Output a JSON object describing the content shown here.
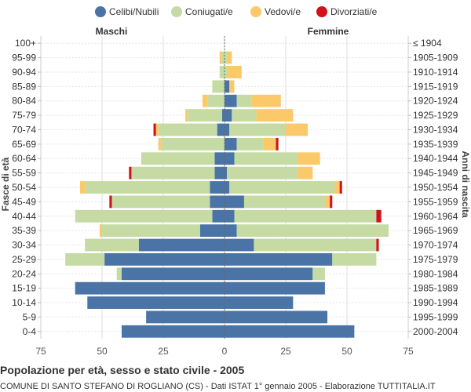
{
  "chart_data": {
    "type": "bar",
    "orientation": "horizontal-population-pyramid",
    "title": "Popolazione per età, sesso e stato civile - 2005",
    "subtitle": "COMUNE DI SANTO STEFANO DI ROGLIANO (CS) - Dati ISTAT 1° gennaio 2005 - Elaborazione TUTTITALIA.IT",
    "left_label": "Maschi",
    "right_label": "Femmine",
    "ylabel_left": "Fasce di età",
    "ylabel_right": "Anni di nascita",
    "xlim": [
      -75,
      75
    ],
    "xticks": [
      -75,
      -50,
      -25,
      0,
      25,
      50,
      75
    ],
    "xtick_labels": [
      "75",
      "50",
      "25",
      "0",
      "25",
      "50",
      "75"
    ],
    "age_groups": [
      "100+",
      "95-99",
      "90-94",
      "85-89",
      "80-84",
      "75-79",
      "70-74",
      "65-69",
      "60-64",
      "55-59",
      "50-54",
      "45-49",
      "40-44",
      "35-39",
      "30-34",
      "25-29",
      "20-24",
      "15-19",
      "10-14",
      "5-9",
      "0-4"
    ],
    "birth_years": [
      "≤ 1904",
      "1905-1909",
      "1910-1914",
      "1915-1919",
      "1920-1924",
      "1925-1929",
      "1930-1934",
      "1935-1939",
      "1940-1944",
      "1945-1949",
      "1950-1954",
      "1955-1959",
      "1960-1964",
      "1965-1969",
      "1970-1974",
      "1975-1979",
      "1980-1984",
      "1985-1989",
      "1990-1994",
      "1995-1999",
      "2000-2004"
    ],
    "legend": [
      {
        "name": "Celibi/Nubili",
        "color": "#4a74a6"
      },
      {
        "name": "Coniugati/e",
        "color": "#c5dba3"
      },
      {
        "name": "Vedovi/e",
        "color": "#fcc96a"
      },
      {
        "name": "Divorziati/e",
        "color": "#d0121b"
      }
    ],
    "males": {
      "celibi": [
        0,
        0,
        0,
        0,
        0,
        1,
        3,
        0,
        4,
        4,
        6,
        6,
        5,
        10,
        35,
        49,
        42,
        61,
        56,
        32,
        42
      ],
      "coniugati": [
        0,
        1,
        2,
        5,
        7,
        14,
        24,
        26,
        30,
        34,
        51,
        40,
        56,
        40,
        22,
        16,
        2,
        0,
        0,
        0,
        0
      ],
      "vedovi": [
        0,
        1,
        0,
        0,
        2,
        1,
        1,
        1,
        0,
        0,
        2,
        0,
        0,
        1,
        0,
        0,
        0,
        0,
        0,
        0,
        0
      ],
      "divorziati": [
        0,
        0,
        0,
        0,
        0,
        0,
        1,
        0,
        0,
        1,
        0,
        1,
        0,
        0,
        0,
        0,
        0,
        0,
        0,
        0,
        0
      ]
    },
    "females": {
      "nubili": [
        0,
        0,
        0,
        2,
        5,
        3,
        2,
        5,
        4,
        1,
        2,
        8,
        4,
        5,
        12,
        44,
        36,
        41,
        28,
        42,
        53
      ],
      "coniugate": [
        0,
        1,
        1,
        0,
        6,
        10,
        23,
        11,
        26,
        29,
        43,
        33,
        58,
        62,
        50,
        18,
        5,
        0,
        0,
        0,
        0
      ],
      "vedove": [
        0,
        2,
        6,
        2,
        12,
        15,
        9,
        5,
        9,
        6,
        2,
        2,
        0,
        0,
        0,
        0,
        0,
        0,
        0,
        0,
        0
      ],
      "divorziate": [
        0,
        0,
        0,
        0,
        0,
        0,
        0,
        1,
        0,
        0,
        1,
        1,
        2,
        0,
        1,
        0,
        0,
        0,
        0,
        0,
        0
      ]
    }
  }
}
